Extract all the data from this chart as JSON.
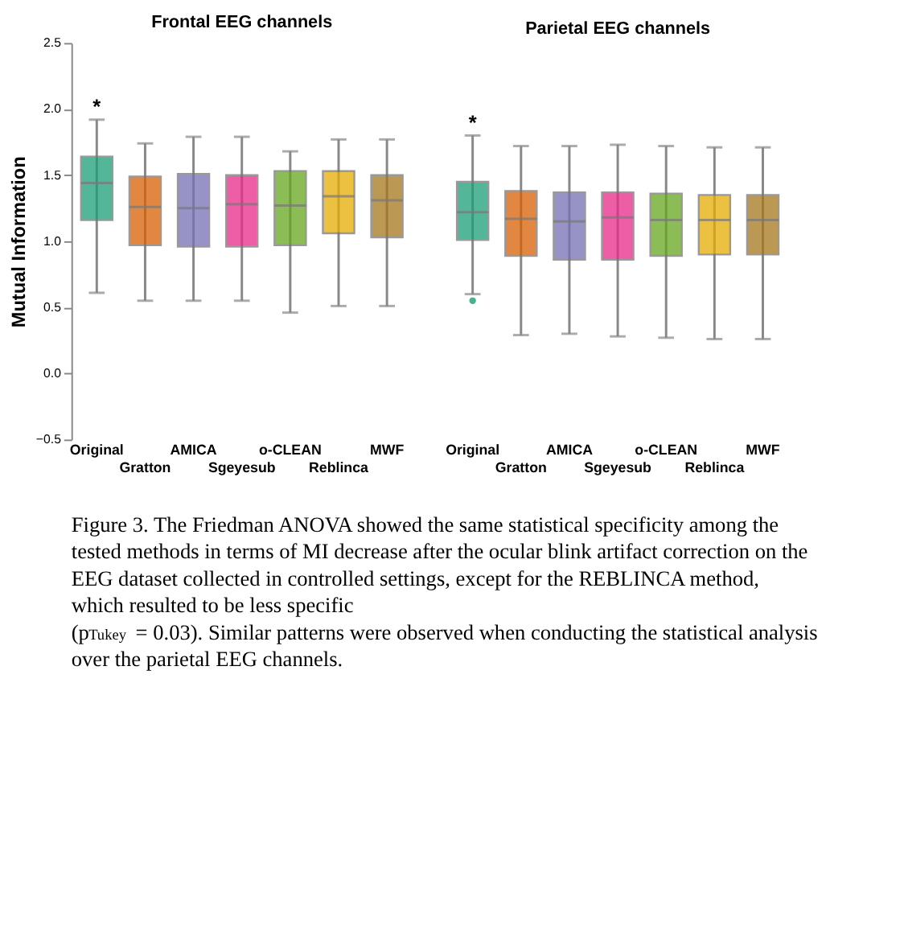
{
  "chart_data": [
    {
      "type": "box",
      "title": "Frontal EEG channels",
      "ylabel": "Mutual Information",
      "categories": [
        "Original",
        "Gratton",
        "AMICA",
        "Sgeyesub",
        "o-CLEAN",
        "Reblinca",
        "MWF"
      ],
      "colors": [
        "#1b9e77",
        "#d95f02",
        "#7570b3",
        "#e7298a",
        "#66a61e",
        "#e6ab02",
        "#a6761d"
      ],
      "boxes": [
        {
          "low": 0.61,
          "q1": 1.16,
          "median": 1.44,
          "q3": 1.64,
          "high": 1.92
        },
        {
          "low": 0.55,
          "q1": 0.97,
          "median": 1.26,
          "q3": 1.49,
          "high": 1.74
        },
        {
          "low": 0.55,
          "q1": 0.96,
          "median": 1.25,
          "q3": 1.51,
          "high": 1.79
        },
        {
          "low": 0.55,
          "q1": 0.96,
          "median": 1.28,
          "q3": 1.5,
          "high": 1.79
        },
        {
          "low": 0.46,
          "q1": 0.97,
          "median": 1.27,
          "q3": 1.53,
          "high": 1.68
        },
        {
          "low": 0.51,
          "q1": 1.06,
          "median": 1.34,
          "q3": 1.53,
          "high": 1.77
        },
        {
          "low": 0.51,
          "q1": 1.03,
          "median": 1.31,
          "q3": 1.5,
          "high": 1.77
        }
      ],
      "ylim": [
        -0.5,
        2.5
      ],
      "yticks": [
        -0.5,
        {
          "value": 0,
          "label": "0.0"
        },
        0.5,
        {
          "value": 1,
          "label": "1.0"
        },
        1.5,
        {
          "value": 2,
          "label": "2.0"
        },
        2.5
      ],
      "grid": false,
      "annotations": [
        "*",
        "Figure 3. The Friedman ANOVA showed the same statistical specificity among the tested methods in terms of MI decrease after the ocular blink artifact correction on the EEG dataset collected in controlled settings, except for the REBLINCA method, which resulted to be less specific (p$_{Tukey}$ = 0.03). Similar patterns were observed when conducting the statistical analysis over the parietal EEG channels."
      ]
    },
    {
      "type": "box",
      "title": "Parietal EEG channels",
      "categories": [
        "Original",
        "Gratton",
        "AMICA",
        "Sgeyesub",
        "o-CLEAN",
        "Reblinca",
        "MWF"
      ],
      "colors": [
        "#1b9e77",
        "#d95f02",
        "#7570b3",
        "#e7298a",
        "#66a61e",
        "#e6ab02",
        "#a6761d"
      ],
      "boxes": [
        {
          "low": 0.6,
          "q1": 1.01,
          "median": 1.22,
          "q3": 1.45,
          "high": 1.8,
          "outliers": [
            0.55
          ]
        },
        {
          "low": 0.29,
          "q1": 0.89,
          "median": 1.17,
          "q3": 1.38,
          "high": 1.72
        },
        {
          "low": 0.3,
          "q1": 0.86,
          "median": 1.15,
          "q3": 1.37,
          "high": 1.72
        },
        {
          "low": 0.28,
          "q1": 0.86,
          "median": 1.18,
          "q3": 1.37,
          "high": 1.73
        },
        {
          "low": 0.27,
          "q1": 0.89,
          "median": 1.16,
          "q3": 1.36,
          "high": 1.72
        },
        {
          "low": 0.26,
          "q1": 0.9,
          "median": 1.16,
          "q3": 1.35,
          "high": 1.71
        },
        {
          "low": 0.26,
          "q1": 0.9,
          "median": 1.16,
          "q3": 1.35,
          "high": 1.71
        }
      ],
      "ylim": [
        -0.5,
        2.5
      ],
      "yticks": [
        -0.5,
        0,
        0.5,
        1,
        1.5,
        2,
        2.5
      ],
      "grid": false,
      "tick_labels": "x",
      "annotations": [
        "*"
      ]
    }
  ]
}
